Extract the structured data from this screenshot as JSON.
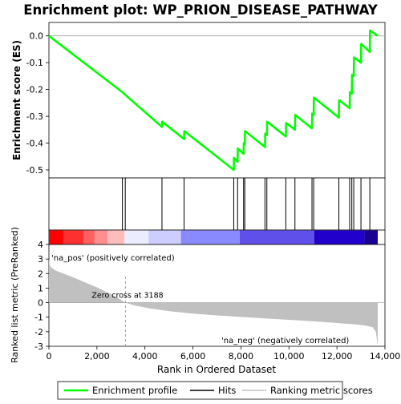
{
  "chart_data": {
    "type": "line",
    "title": "Enrichment plot: WP_PRION_DISEASE_PATHWAY",
    "xlabel": "Rank in Ordered Dataset",
    "xlim": [
      0,
      14000
    ],
    "x_ticks": [
      0,
      2000,
      4000,
      6000,
      8000,
      10000,
      12000,
      14000
    ],
    "x_tick_labels": [
      "0",
      "2,000",
      "4,000",
      "6,000",
      "8,000",
      "10,000",
      "12,000",
      "14,000"
    ],
    "es_panel": {
      "ylabel": "Enrichment score (ES)",
      "ylim": [
        -0.53,
        0.05
      ],
      "y_ticks": [
        0.0,
        -0.1,
        -0.2,
        -0.3,
        -0.4,
        -0.5
      ],
      "y_tick_labels": [
        "0.0",
        "-0.1",
        "-0.2",
        "-0.3",
        "-0.4",
        "-0.5"
      ],
      "series_name": "Enrichment profile",
      "line_color": "#00ff00",
      "points": [
        [
          0,
          0.0
        ],
        [
          3060,
          -0.21
        ],
        [
          3180,
          -0.22
        ],
        [
          4710,
          -0.34
        ],
        [
          4720,
          -0.32
        ],
        [
          5630,
          -0.385
        ],
        [
          5640,
          -0.355
        ],
        [
          7700,
          -0.5
        ],
        [
          7710,
          -0.455
        ],
        [
          7860,
          -0.47
        ],
        [
          7870,
          -0.42
        ],
        [
          8110,
          -0.44
        ],
        [
          8120,
          -0.4
        ],
        [
          8160,
          -0.405
        ],
        [
          8170,
          -0.355
        ],
        [
          9000,
          -0.415
        ],
        [
          9010,
          -0.365
        ],
        [
          9080,
          -0.37
        ],
        [
          9090,
          -0.32
        ],
        [
          9870,
          -0.375
        ],
        [
          9880,
          -0.325
        ],
        [
          10250,
          -0.35
        ],
        [
          10260,
          -0.295
        ],
        [
          10960,
          -0.345
        ],
        [
          10970,
          -0.29
        ],
        [
          11030,
          -0.295
        ],
        [
          11040,
          -0.23
        ],
        [
          12080,
          -0.305
        ],
        [
          12090,
          -0.24
        ],
        [
          12530,
          -0.27
        ],
        [
          12540,
          -0.21
        ],
        [
          12620,
          -0.215
        ],
        [
          12630,
          -0.145
        ],
        [
          12700,
          -0.15
        ],
        [
          12710,
          -0.08
        ],
        [
          13000,
          -0.1
        ],
        [
          13010,
          -0.03
        ],
        [
          13370,
          -0.06
        ],
        [
          13380,
          0.02
        ],
        [
          13700,
          0.0
        ]
      ]
    },
    "hits": [
      3060,
      3180,
      4710,
      5630,
      7700,
      7860,
      8110,
      8160,
      9000,
      9080,
      9870,
      10250,
      10960,
      11030,
      12080,
      12530,
      12620,
      12700,
      13000,
      13370
    ],
    "metric_panel": {
      "ylabel": "Ranked list metric (PreRanked)",
      "ylim": [
        -3,
        4
      ],
      "y_ticks": [
        4,
        3,
        2,
        1,
        0,
        -1,
        -2,
        -3
      ],
      "y_tick_labels": [
        "4",
        "3",
        "2",
        "1",
        "0",
        "-1",
        "-2",
        "-3"
      ],
      "curve": [
        [
          0,
          3.0
        ],
        [
          30,
          2.6
        ],
        [
          100,
          2.4
        ],
        [
          300,
          2.2
        ],
        [
          600,
          2.0
        ],
        [
          1000,
          1.75
        ],
        [
          1500,
          1.4
        ],
        [
          2000,
          1.05
        ],
        [
          2500,
          0.65
        ],
        [
          2900,
          0.3
        ],
        [
          3188,
          0.0
        ],
        [
          3600,
          -0.2
        ],
        [
          4200,
          -0.4
        ],
        [
          5000,
          -0.58
        ],
        [
          6000,
          -0.75
        ],
        [
          7000,
          -0.88
        ],
        [
          8000,
          -0.98
        ],
        [
          9000,
          -1.08
        ],
        [
          10000,
          -1.18
        ],
        [
          11000,
          -1.28
        ],
        [
          12000,
          -1.4
        ],
        [
          12800,
          -1.5
        ],
        [
          13200,
          -1.58
        ],
        [
          13500,
          -1.7
        ],
        [
          13620,
          -2.0
        ],
        [
          13680,
          -2.7
        ],
        [
          13700,
          -2.9
        ]
      ],
      "fill_color": "#c0c0c0",
      "zero_cross_label": "Zero cross at 3188",
      "zero_cross": 3188,
      "pos_label": "'na_pos' (positively correlated)",
      "neg_label": "'na_neg' (negatively correlated)",
      "pos_color": "#ff0000",
      "neg_color": "#0000ff"
    },
    "heat_bar": {
      "segments": [
        [
          0,
          600,
          "#ff0000"
        ],
        [
          600,
          1450,
          "#ff3030"
        ],
        [
          1450,
          1900,
          "#ff6060"
        ],
        [
          1900,
          2450,
          "#ff8e8e"
        ],
        [
          2450,
          3150,
          "#ffbcbc"
        ],
        [
          3150,
          4150,
          "#ececff"
        ],
        [
          4150,
          5500,
          "#cdcdff"
        ],
        [
          5500,
          7950,
          "#8a8aff"
        ],
        [
          7950,
          11050,
          "#5e50e8"
        ],
        [
          11050,
          13150,
          "#2200cc"
        ],
        [
          13150,
          13700,
          "#1a0090"
        ]
      ]
    },
    "legend": [
      {
        "name": "Enrichment profile",
        "color": "#00ff00"
      },
      {
        "name": "Hits",
        "color": "#000000"
      },
      {
        "name": "Ranking metric scores",
        "color": "#c0c0c0"
      }
    ]
  }
}
